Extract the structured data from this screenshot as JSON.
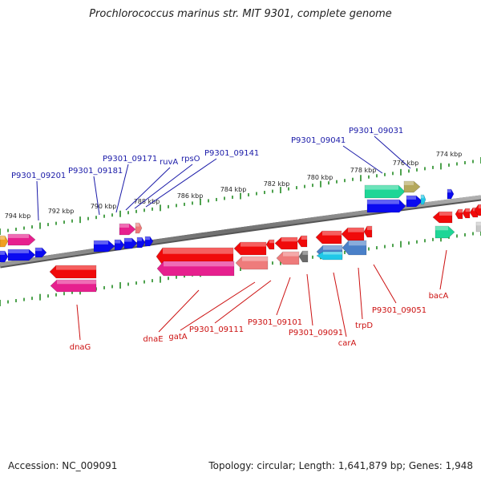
{
  "title": "Prochlorococcus marinus str. MIT 9301, complete genome",
  "footer": {
    "accession": "Accession: NC_009091",
    "summary": "Topology: circular; Length: 1,641,879 bp; Genes: 1,948"
  },
  "colors": {
    "forward_label": "#1a1aa8",
    "reverse_label": "#cc1010",
    "backbone": "#808080",
    "tick": "#228b22",
    "forward_gene": "#0a0af0",
    "reverse_gene": "#f00a0a",
    "pink_gene": "#e6208e",
    "salmon_gene": "#ee7b7b",
    "teal_gene": "#1ed696",
    "olive_gene": "#b4a85c",
    "steel_gene": "#4a80c8",
    "cyan_gene": "#20c8e8"
  },
  "ticks": [
    "794 kbp",
    "792 kbp",
    "790 kbp",
    "788 kbp",
    "786 kbp",
    "784 kbp",
    "782 kbp",
    "780 kbp",
    "778 kbp",
    "776 kbp",
    "774 kbp"
  ],
  "forward_labels": [
    "P9301_09201",
    "P9301_09181",
    "P9301_09171",
    "ruvA",
    "rpsO",
    "P9301_09141",
    "P9301_09041",
    "P9301_09031"
  ],
  "reverse_labels": [
    "dnaG",
    "dnaE",
    "gatA",
    "P9301_09111",
    "P9301_09101",
    "P9301_09091",
    "carA",
    "trpD",
    "P9301_09051",
    "bacA"
  ]
}
